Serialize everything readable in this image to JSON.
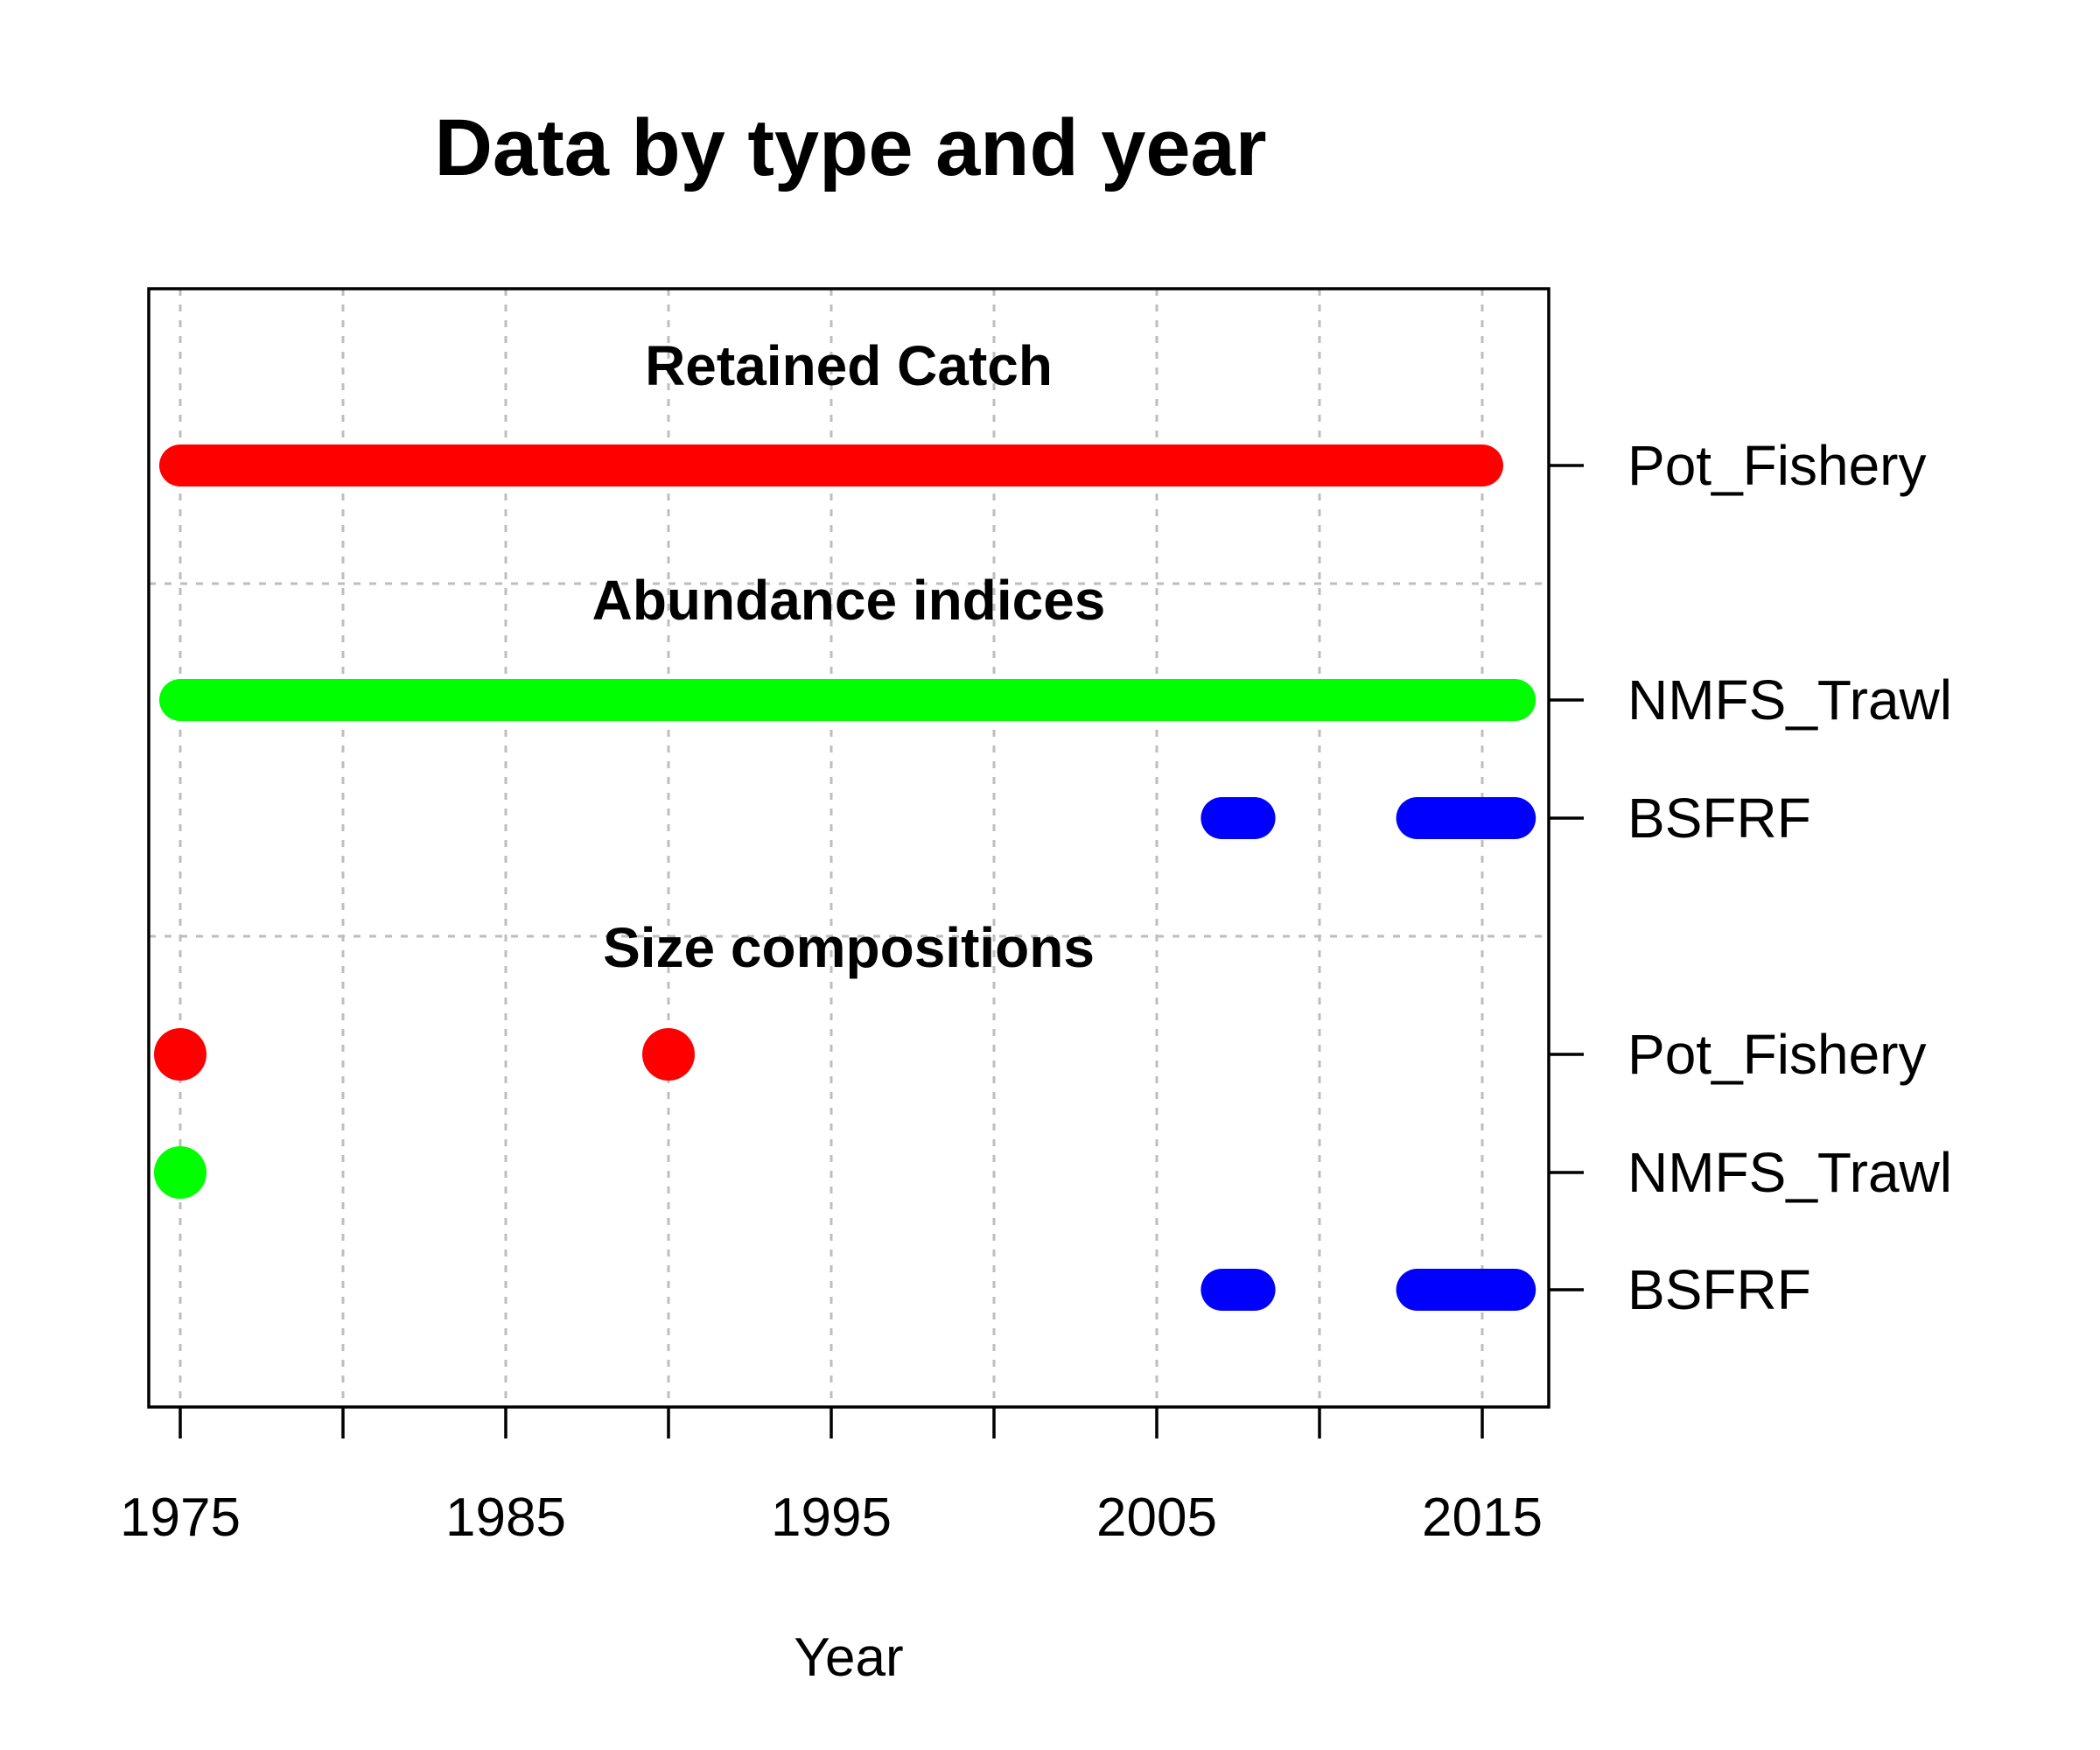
{
  "chart_data": {
    "type": "timeline",
    "title": "Data by type and year",
    "xlabel": "Year",
    "xlim": [
      1974,
      2017
    ],
    "x_ticks": [
      1975,
      1980,
      1985,
      1990,
      1995,
      2000,
      2005,
      2010,
      2015
    ],
    "x_tick_labels": [
      "1975",
      "1985",
      "1995",
      "2005",
      "2015"
    ],
    "grid": true,
    "sections": [
      {
        "label": "Retained Catch",
        "rows": [
          {
            "name": "Pot_Fishery",
            "color": "#ff0000",
            "years": [
              1975,
              1976,
              1977,
              1978,
              1979,
              1980,
              1981,
              1982,
              1983,
              1984,
              1985,
              1986,
              1987,
              1988,
              1989,
              1990,
              1991,
              1992,
              1993,
              1994,
              1995,
              1996,
              1997,
              1998,
              1999,
              2000,
              2001,
              2002,
              2003,
              2004,
              2005,
              2006,
              2007,
              2008,
              2009,
              2010,
              2011,
              2012,
              2013,
              2014,
              2015
            ]
          }
        ]
      },
      {
        "label": "Abundance indices",
        "rows": [
          {
            "name": "NMFS_Trawl",
            "color": "#00ff00",
            "years": [
              1975,
              1976,
              1977,
              1978,
              1979,
              1980,
              1981,
              1982,
              1983,
              1984,
              1985,
              1986,
              1987,
              1988,
              1989,
              1990,
              1991,
              1992,
              1993,
              1994,
              1995,
              1996,
              1997,
              1998,
              1999,
              2000,
              2001,
              2002,
              2003,
              2004,
              2005,
              2006,
              2007,
              2008,
              2009,
              2010,
              2011,
              2012,
              2013,
              2014,
              2015,
              2016
            ]
          },
          {
            "name": "BSFRF",
            "color": "#0000ff",
            "years": [
              2007,
              2008,
              2013,
              2014,
              2015,
              2016
            ]
          }
        ]
      },
      {
        "label": "Size compositions",
        "rows": [
          {
            "name": "Pot_Fishery",
            "color": "#ff0000",
            "years": [
              1975,
              1990
            ]
          },
          {
            "name": "NMFS_Trawl",
            "color": "#00ff00",
            "years": [
              1975
            ]
          },
          {
            "name": "BSFRF",
            "color": "#0000ff",
            "years": [
              2007,
              2008,
              2013,
              2014,
              2015,
              2016
            ]
          }
        ]
      }
    ]
  }
}
